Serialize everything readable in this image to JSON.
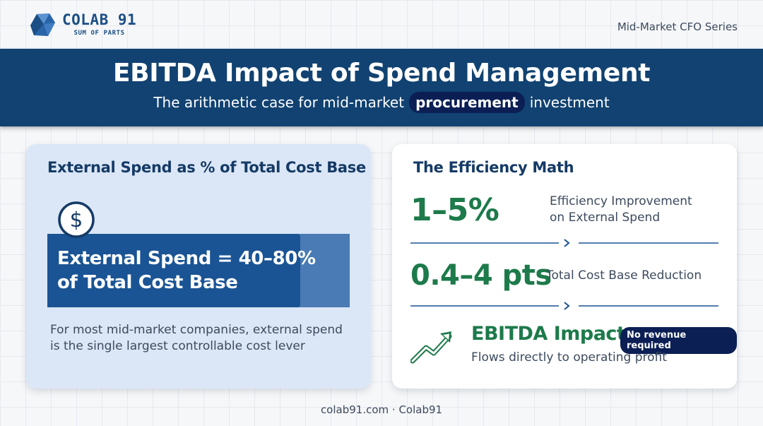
{
  "brand": {
    "name": "COLAB 91",
    "tagline": "SUM OF PARTS"
  },
  "series_label": "Mid-Market CFO Series",
  "banner": {
    "title": "EBITDA Impact of Spend Management",
    "subtitle_before": "The arithmetic case for mid-market",
    "subtitle_highlight": "procurement",
    "subtitle_after": "investment"
  },
  "left_card": {
    "title": "External Spend as % of Total Cost Base",
    "icon": "dollar-icon",
    "bar_line1": "External Spend = 40–80%",
    "bar_line2": "of Total Cost Base",
    "note": "For most mid-market companies, external spend is the single largest controllable cost lever"
  },
  "right_card": {
    "title": "The Efficiency Math",
    "stat1_value": "1–5%",
    "stat1_desc_line1": "Efficiency Improvement",
    "stat1_desc_line2": "on External Spend",
    "stat2_value": "0.4–4 pts",
    "stat2_desc": "Total Cost Base Reduction",
    "impact_title": "EBITDA Impact",
    "impact_badge": "No revenue required",
    "impact_sub": "Flows directly to operating profit",
    "trend_icon": "trend-up-icon"
  },
  "footer": "colab91.com · Colab91",
  "colors": {
    "navy": "#114271",
    "green": "#1d7a4a",
    "dark_pill": "#0b1f55"
  }
}
